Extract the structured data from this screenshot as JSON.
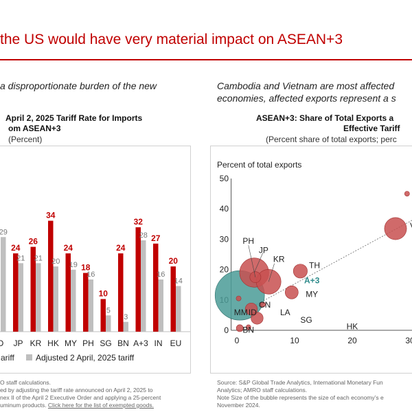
{
  "slide": {
    "title": "the US would have very material impact on ASEAN+3",
    "left_subheading": "a disproportionate burden of the new",
    "right_subheading_line1": "Cambodia and Vietnam are most affected",
    "right_subheading_line2": "economies, affected exports represent a s"
  },
  "left_chart": {
    "title_line1": "April 2, 2025 Tariff Rate for Imports",
    "title_line2": "om ASEAN+3",
    "subtitle": "(Percent)",
    "legend_item1": "ariff",
    "legend_item2": "Adjusted 2 April, 2025 tariff",
    "notes_line1": "O staff calculations.",
    "notes_line2": "ed by adjusting the tariff rate announced on April 2, 2025 to",
    "notes_line3": "nex II of the April 2 Executive Order and applying a 25-percent",
    "notes_line4_text": "uminum products. ",
    "notes_line4_link": "Click here for the list of exempted goods."
  },
  "right_chart": {
    "title_line1": "ASEAN+3: Share of Total Exports a",
    "title_line2": "Effective Tariff",
    "subtitle": "(Percent share of total exports; perc",
    "y_axis_title": "Percent of total exports",
    "source_line1": "Source: S&P Global Trade Analytics, International Monetary Fun",
    "source_line2": "Analytics; AMRO staff calculations.",
    "source_line3": "Note Size of the bubble represents the size of each economy’s e",
    "source_line4": "November 2024."
  },
  "chart_data": [
    {
      "type": "bar",
      "categories": [
        "D",
        "JP",
        "KR",
        "HK",
        "MY",
        "PH",
        "SG",
        "BN",
        "A+3",
        "IN",
        "EU"
      ],
      "series": [
        {
          "name": "ariff",
          "color": "#c00000",
          "values": [
            null,
            24,
            26,
            34,
            24,
            18,
            10,
            24,
            32,
            27,
            20
          ],
          "labels": [
            "",
            "24",
            "26",
            "34",
            "24",
            "18",
            "10",
            "24",
            "32",
            "27",
            "20"
          ]
        },
        {
          "name": "Adjusted 2 April, 2025 tariff",
          "color": "#bfbfbf",
          "values": [
            29,
            21,
            21,
            20,
            19,
            16,
            5,
            3,
            28,
            16,
            14
          ],
          "labels": [
            "29",
            "21",
            "21",
            "20",
            "19",
            "16",
            "5",
            "3",
            "28",
            "16",
            "14"
          ]
        }
      ],
      "ylim": [
        0,
        40
      ]
    },
    {
      "type": "scatter",
      "title": "ASEAN+3: Share of Total Exports a",
      "ylabel": "Percent of total exports",
      "xlim": [
        -1,
        36
      ],
      "ylim": [
        0,
        50
      ],
      "x_ticks": [
        "0",
        "10",
        "20",
        "30"
      ],
      "y_ticks": [
        "0",
        "10",
        "20",
        "30",
        "40",
        "50"
      ],
      "points": [
        {
          "label": "CN",
          "x": 0.5,
          "y": 11.5,
          "size": 1.0,
          "color": "#4a9b96"
        },
        {
          "label": "JP",
          "x": 3,
          "y": 19,
          "size": 0.35,
          "color": "#c85050"
        },
        {
          "label": "KR",
          "x": 5.5,
          "y": 16,
          "size": 0.25,
          "color": "#c85050"
        },
        {
          "label": "PH",
          "x": 3.2,
          "y": 17.5,
          "size": 0.05,
          "color": "#c85050"
        },
        {
          "label": "TH",
          "x": 11,
          "y": 19.5,
          "size": 0.08,
          "color": "#c85050"
        },
        {
          "label": "A+3",
          "x": 2,
          "y": 13,
          "size": 0.0,
          "color": "#2e8b8b"
        },
        {
          "label": "MY",
          "x": 9.5,
          "y": 12.5,
          "size": 0.07,
          "color": "#c85050"
        },
        {
          "label": "MM",
          "x": 0.3,
          "y": 10.5,
          "size": 0.01,
          "color": "#c85050"
        },
        {
          "label": "ID",
          "x": 2.5,
          "y": 7,
          "size": 0.06,
          "color": "#c85050"
        },
        {
          "label": "LA",
          "x": 4.5,
          "y": 8.5,
          "size": 0.01,
          "color": "#c85050"
        },
        {
          "label": "SG",
          "x": 3.5,
          "y": 4,
          "size": 0.06,
          "color": "#c85050"
        },
        {
          "label": "HK",
          "x": 2,
          "y": 1,
          "size": 0.01,
          "color": "#c85050"
        },
        {
          "label": "BN",
          "x": 0.5,
          "y": 0.7,
          "size": 0.02,
          "color": "#c85050"
        },
        {
          "label": "VI",
          "x": 27.5,
          "y": 33.5,
          "size": 0.2,
          "color": "#c85050"
        },
        {
          "label": "",
          "x": 29.5,
          "y": 45,
          "size": 0.01,
          "color": "#c85050"
        }
      ],
      "trendline": {
        "from": [
          0,
          5
        ],
        "to": [
          35,
          41
        ]
      }
    }
  ]
}
